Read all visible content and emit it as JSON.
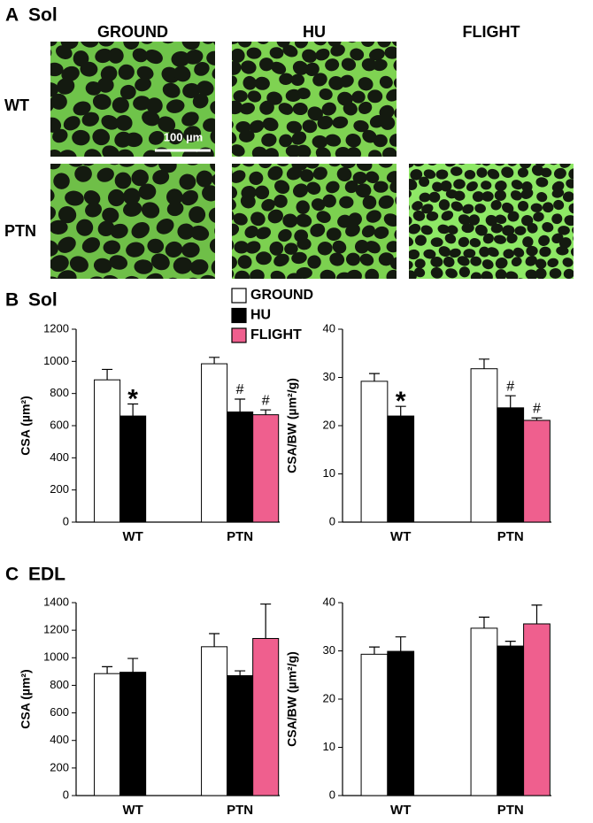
{
  "panel_a": {
    "letter": "A",
    "title": "Sol",
    "columns": [
      "GROUND",
      "HU",
      "FLIGHT"
    ],
    "rows": [
      "WT",
      "PTN"
    ],
    "scale_bar": "100 µm"
  },
  "panel_b": {
    "letter": "B",
    "title": "Sol"
  },
  "panel_c": {
    "letter": "C",
    "title": "EDL"
  },
  "chart_data": [
    {
      "type": "bar",
      "y_label": "CSA (µm²)",
      "categories": [
        "WT",
        "PTN"
      ],
      "ylim": [
        0,
        1200
      ],
      "yticks": [
        0,
        200,
        400,
        600,
        800,
        1000,
        1200
      ],
      "series": [
        {
          "name": "GROUND",
          "color": "#ffffff",
          "values": [
            885,
            985
          ],
          "errors": [
            65,
            40
          ],
          "significance": [
            null,
            null
          ]
        },
        {
          "name": "HU",
          "color": "#000000",
          "values": [
            660,
            685
          ],
          "errors": [
            75,
            80
          ],
          "significance": [
            "*",
            "#"
          ]
        },
        {
          "name": "FLIGHT",
          "color": "#ef5f8e",
          "values": [
            null,
            668
          ],
          "errors": [
            null,
            30
          ],
          "significance": [
            null,
            "#"
          ]
        }
      ]
    },
    {
      "type": "bar",
      "y_label": "CSA/BW (µm²/g)",
      "categories": [
        "WT",
        "PTN"
      ],
      "ylim": [
        0,
        40
      ],
      "yticks": [
        0,
        10,
        20,
        30,
        40
      ],
      "series": [
        {
          "name": "GROUND",
          "color": "#ffffff",
          "values": [
            29.2,
            31.8
          ],
          "errors": [
            1.6,
            2
          ],
          "significance": [
            null,
            null
          ]
        },
        {
          "name": "HU",
          "color": "#000000",
          "values": [
            22,
            23.7
          ],
          "errors": [
            2,
            2.5
          ],
          "significance": [
            "*",
            "#"
          ]
        },
        {
          "name": "FLIGHT",
          "color": "#ef5f8e",
          "values": [
            null,
            21.1
          ],
          "errors": [
            null,
            0.5
          ],
          "significance": [
            null,
            "#"
          ]
        }
      ]
    },
    {
      "type": "bar",
      "y_label": "CSA (µm²)",
      "categories": [
        "WT",
        "PTN"
      ],
      "ylim": [
        0,
        1400
      ],
      "yticks": [
        0,
        200,
        400,
        600,
        800,
        1000,
        1200,
        1400
      ],
      "series": [
        {
          "name": "GROUND",
          "color": "#ffffff",
          "values": [
            885,
            1080
          ],
          "errors": [
            50,
            95
          ]
        },
        {
          "name": "HU",
          "color": "#000000",
          "values": [
            895,
            870
          ],
          "errors": [
            100,
            35
          ]
        },
        {
          "name": "FLIGHT",
          "color": "#ef5f8e",
          "values": [
            null,
            1140
          ],
          "errors": [
            null,
            250
          ]
        }
      ]
    },
    {
      "type": "bar",
      "y_label": "CSA/BW (µm²/g)",
      "categories": [
        "WT",
        "PTN"
      ],
      "ylim": [
        0,
        40
      ],
      "yticks": [
        0,
        10,
        20,
        30,
        40
      ],
      "series": [
        {
          "name": "GROUND",
          "color": "#ffffff",
          "values": [
            29.3,
            34.7
          ],
          "errors": [
            1.5,
            2.3
          ]
        },
        {
          "name": "HU",
          "color": "#000000",
          "values": [
            29.9,
            31
          ],
          "errors": [
            3,
            1
          ]
        },
        {
          "name": "FLIGHT",
          "color": "#ef5f8e",
          "values": [
            null,
            35.6
          ],
          "errors": [
            null,
            3.9
          ]
        }
      ]
    }
  ]
}
